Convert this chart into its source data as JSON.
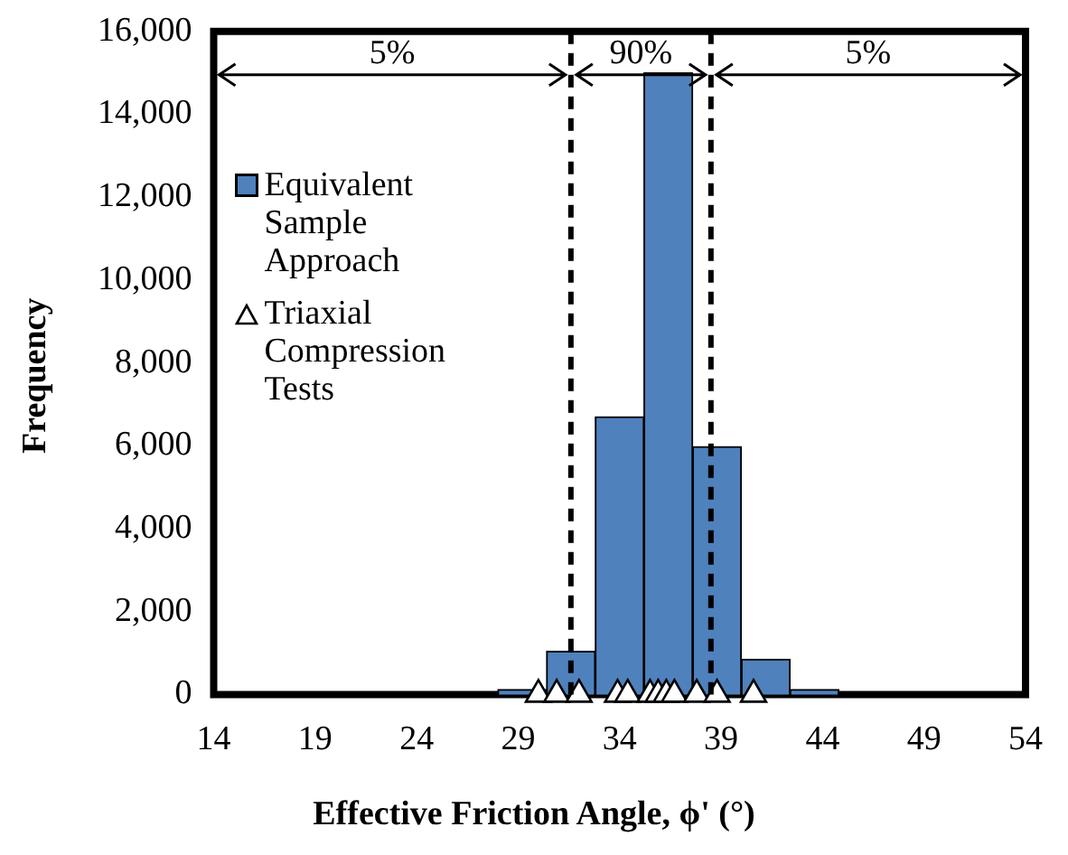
{
  "chart_data": {
    "type": "histogram",
    "xlabel": "Effective Friction Angle, ϕ' (°)",
    "ylabel": "Frequency",
    "bins": [
      28,
      30.4,
      32.8,
      35.2,
      37.6,
      40,
      42.4,
      44.8
    ],
    "series": [
      {
        "name": "Equivalent Sample Approach",
        "color": "#4f81bd",
        "values": [
          120,
          1040,
          6700,
          15000,
          5980,
          850,
          120
        ]
      },
      {
        "name": "Triaxial Compression Tests",
        "type": "scatter",
        "color": "#000000",
        "marker": "triangle",
        "x": [
          30.0,
          30.9,
          32.0,
          33.9,
          34.4,
          35.5,
          35.9,
          36.3,
          36.7,
          37.8,
          38.8,
          40.6
        ],
        "values": [
          0,
          0,
          0,
          0,
          0,
          0,
          0,
          0,
          0,
          0,
          0,
          0
        ]
      }
    ],
    "xlim": [
      14,
      54
    ],
    "xticks": [
      14,
      19,
      24,
      29,
      34,
      39,
      44,
      49,
      54
    ],
    "ylim": [
      0,
      16000
    ],
    "yticks": [
      0,
      {
        "value": 2000,
        "label": "2,000"
      },
      {
        "value": 4000,
        "label": "4,000"
      },
      {
        "value": 6000,
        "label": "6,000"
      },
      {
        "value": 8000,
        "label": "8,000"
      },
      {
        "value": 10000,
        "label": "10,000"
      },
      {
        "value": 12000,
        "label": "12,000"
      },
      {
        "value": 14000,
        "label": "14,000"
      },
      {
        "value": 16000,
        "label": "16,000"
      }
    ],
    "ref_lines": [
      {
        "axis": "x",
        "value": 31.6,
        "line_style": "dashed",
        "color": "#000000"
      },
      {
        "axis": "x",
        "value": 38.5,
        "line_style": "dashed",
        "color": "#000000"
      }
    ],
    "annotations": [
      "5%",
      "90%",
      "5%"
    ],
    "grid": false,
    "legend": "top left"
  }
}
